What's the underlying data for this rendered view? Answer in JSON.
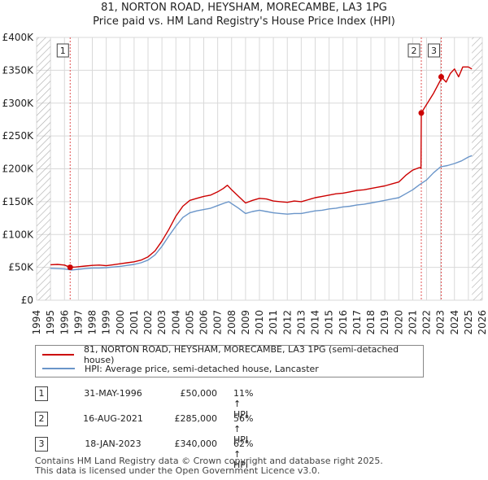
{
  "title_line1": "81, NORTON ROAD, HEYSHAM, MORECAMBE, LA3 1PG",
  "title_line2": "Price paid vs. HM Land Registry's House Price Index (HPI)",
  "colors": {
    "property": "#cc0000",
    "hpi": "#6a95c9",
    "grid": "#d9d9d9",
    "hatch": "#aaaaaa",
    "marker_line": "#e05050"
  },
  "chart_data": {
    "type": "line",
    "title": "Price paid vs. HM Land Registry's House Price Index (HPI)",
    "xlim": [
      1994,
      2026
    ],
    "ylim": [
      0,
      400000
    ],
    "x_ticks": [
      "1994",
      "1995",
      "1996",
      "1997",
      "1998",
      "1999",
      "2000",
      "2001",
      "2002",
      "2003",
      "2004",
      "2005",
      "2006",
      "2007",
      "2008",
      "2009",
      "2010",
      "2011",
      "2012",
      "2013",
      "2014",
      "2015",
      "2016",
      "2017",
      "2018",
      "2019",
      "2020",
      "2021",
      "2022",
      "2023",
      "2024",
      "2025",
      "2026"
    ],
    "y_ticks": [
      {
        "value": 0,
        "label": "£0"
      },
      {
        "value": 50000,
        "label": "£50K"
      },
      {
        "value": 100000,
        "label": "£100K"
      },
      {
        "value": 150000,
        "label": "£150K"
      },
      {
        "value": 200000,
        "label": "£200K"
      },
      {
        "value": 250000,
        "label": "£250K"
      },
      {
        "value": 300000,
        "label": "£300K"
      },
      {
        "value": 350000,
        "label": "£350K"
      },
      {
        "value": 400000,
        "label": "£400K"
      }
    ],
    "data_start": 1995.0,
    "data_end": 2025.25,
    "series": [
      {
        "name": "81, NORTON ROAD, HEYSHAM, MORECAMBE, LA3 1PG (semi-detached house)",
        "points": [
          [
            1995.0,
            54000
          ],
          [
            1995.5,
            54500
          ],
          [
            1996.0,
            53500
          ],
          [
            1996.41,
            50000
          ],
          [
            1996.8,
            50500
          ],
          [
            1997.5,
            52000
          ],
          [
            1998.0,
            53000
          ],
          [
            1998.5,
            53500
          ],
          [
            1999.0,
            52500
          ],
          [
            1999.5,
            54000
          ],
          [
            2000.0,
            55500
          ],
          [
            2000.5,
            57000
          ],
          [
            2001.0,
            58500
          ],
          [
            2001.5,
            61000
          ],
          [
            2002.0,
            66000
          ],
          [
            2002.5,
            75000
          ],
          [
            2003.0,
            90000
          ],
          [
            2003.5,
            108000
          ],
          [
            2004.0,
            128000
          ],
          [
            2004.5,
            143000
          ],
          [
            2005.0,
            152000
          ],
          [
            2005.5,
            155000
          ],
          [
            2006.0,
            158000
          ],
          [
            2006.5,
            160000
          ],
          [
            2007.0,
            165000
          ],
          [
            2007.4,
            170000
          ],
          [
            2007.7,
            175000
          ],
          [
            2008.0,
            168000
          ],
          [
            2008.5,
            158000
          ],
          [
            2009.0,
            148000
          ],
          [
            2009.5,
            152000
          ],
          [
            2010.0,
            155000
          ],
          [
            2010.5,
            154000
          ],
          [
            2011.0,
            151000
          ],
          [
            2011.5,
            150000
          ],
          [
            2012.0,
            149000
          ],
          [
            2012.5,
            151000
          ],
          [
            2013.0,
            150000
          ],
          [
            2013.5,
            153000
          ],
          [
            2014.0,
            156000
          ],
          [
            2014.5,
            158000
          ],
          [
            2015.0,
            160000
          ],
          [
            2015.5,
            162000
          ],
          [
            2016.0,
            163000
          ],
          [
            2016.5,
            165000
          ],
          [
            2017.0,
            167000
          ],
          [
            2017.5,
            168000
          ],
          [
            2018.0,
            170000
          ],
          [
            2018.5,
            172000
          ],
          [
            2019.0,
            174000
          ],
          [
            2019.5,
            177000
          ],
          [
            2020.0,
            180000
          ],
          [
            2020.5,
            190000
          ],
          [
            2021.0,
            198000
          ],
          [
            2021.5,
            202000
          ],
          [
            2021.6,
            201000
          ],
          [
            2021.62,
            285000
          ],
          [
            2022.0,
            298000
          ],
          [
            2022.5,
            315000
          ],
          [
            2023.0,
            335000
          ],
          [
            2023.05,
            340000
          ],
          [
            2023.4,
            332000
          ],
          [
            2023.7,
            345000
          ],
          [
            2024.0,
            352000
          ],
          [
            2024.3,
            340000
          ],
          [
            2024.6,
            355000
          ],
          [
            2025.0,
            355000
          ],
          [
            2025.25,
            352000
          ]
        ]
      },
      {
        "name": "HPI: Average price, semi-detached house, Lancaster",
        "points": [
          [
            1995.0,
            48500
          ],
          [
            1995.5,
            48000
          ],
          [
            1996.0,
            47500
          ],
          [
            1996.5,
            46000
          ],
          [
            1997.0,
            47000
          ],
          [
            1997.5,
            48000
          ],
          [
            1998.0,
            49000
          ],
          [
            1998.5,
            49000
          ],
          [
            1999.0,
            49500
          ],
          [
            1999.5,
            50500
          ],
          [
            2000.0,
            51500
          ],
          [
            2000.5,
            53000
          ],
          [
            2001.0,
            54500
          ],
          [
            2001.5,
            57000
          ],
          [
            2002.0,
            61000
          ],
          [
            2002.5,
            69000
          ],
          [
            2003.0,
            82000
          ],
          [
            2003.5,
            98000
          ],
          [
            2004.0,
            113000
          ],
          [
            2004.5,
            126000
          ],
          [
            2005.0,
            133000
          ],
          [
            2005.5,
            136000
          ],
          [
            2006.0,
            138000
          ],
          [
            2006.5,
            140000
          ],
          [
            2007.0,
            144000
          ],
          [
            2007.5,
            148000
          ],
          [
            2007.8,
            150000
          ],
          [
            2008.0,
            147000
          ],
          [
            2008.5,
            140000
          ],
          [
            2009.0,
            132000
          ],
          [
            2009.5,
            135000
          ],
          [
            2010.0,
            137000
          ],
          [
            2010.5,
            135000
          ],
          [
            2011.0,
            133000
          ],
          [
            2011.5,
            132000
          ],
          [
            2012.0,
            131000
          ],
          [
            2012.5,
            132000
          ],
          [
            2013.0,
            132000
          ],
          [
            2013.5,
            134000
          ],
          [
            2014.0,
            136000
          ],
          [
            2014.5,
            137000
          ],
          [
            2015.0,
            139000
          ],
          [
            2015.5,
            140000
          ],
          [
            2016.0,
            142000
          ],
          [
            2016.5,
            143000
          ],
          [
            2017.0,
            145000
          ],
          [
            2017.5,
            146000
          ],
          [
            2018.0,
            148000
          ],
          [
            2018.5,
            150000
          ],
          [
            2019.0,
            152000
          ],
          [
            2019.5,
            154000
          ],
          [
            2020.0,
            156000
          ],
          [
            2020.5,
            162000
          ],
          [
            2021.0,
            168000
          ],
          [
            2021.5,
            176000
          ],
          [
            2022.0,
            183000
          ],
          [
            2022.5,
            194000
          ],
          [
            2023.0,
            203000
          ],
          [
            2023.5,
            205000
          ],
          [
            2024.0,
            208000
          ],
          [
            2024.5,
            212000
          ],
          [
            2025.0,
            218000
          ],
          [
            2025.25,
            220000
          ]
        ]
      }
    ],
    "annotations": [
      {
        "label": "1",
        "x": 1996.41,
        "price": 50000
      },
      {
        "label": "2",
        "x": 2021.62,
        "price": 285000
      },
      {
        "label": "3",
        "x": 2023.05,
        "price": 340000
      }
    ]
  },
  "legend": {
    "property_label": "81, NORTON ROAD, HEYSHAM, MORECAMBE, LA3 1PG (semi-detached house)",
    "hpi_label": "HPI: Average price, semi-detached house, Lancaster"
  },
  "transactions": [
    {
      "num": "1",
      "date": "31-MAY-1996",
      "price": "£50,000",
      "hpi": "11% ↑ HPI"
    },
    {
      "num": "2",
      "date": "16-AUG-2021",
      "price": "£285,000",
      "hpi": "56% ↑ HPI"
    },
    {
      "num": "3",
      "date": "18-JAN-2023",
      "price": "£340,000",
      "hpi": "62% ↑ HPI"
    }
  ],
  "footer": {
    "line1": "Contains HM Land Registry data © Crown copyright and database right 2025.",
    "line2": "This data is licensed under the Open Government Licence v3.0."
  }
}
